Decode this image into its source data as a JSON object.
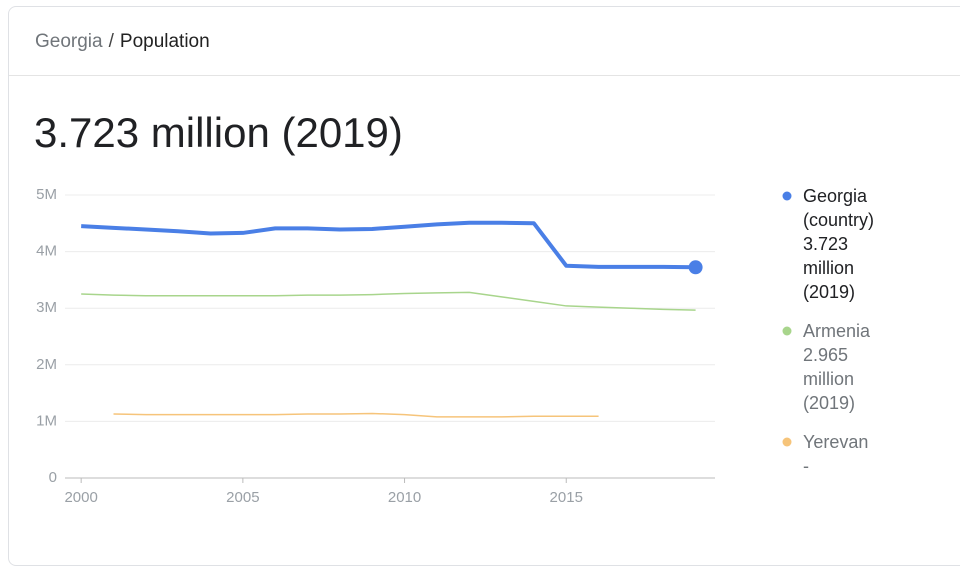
{
  "breadcrumb": {
    "parent": "Georgia",
    "separator": "/",
    "current": "Population"
  },
  "headline": "3.723 million (2019)",
  "chart_data": {
    "type": "line",
    "x": [
      2000,
      2001,
      2002,
      2003,
      2004,
      2005,
      2006,
      2007,
      2008,
      2009,
      2010,
      2011,
      2012,
      2013,
      2014,
      2015,
      2016,
      2017,
      2018,
      2019
    ],
    "xlim": [
      1999.5,
      2019.6
    ],
    "xticks": [
      2000,
      2005,
      2010,
      2015
    ],
    "ylim": [
      0,
      5
    ],
    "yticks": [
      {
        "value": 0,
        "label": "0"
      },
      {
        "value": 1,
        "label": "1M"
      },
      {
        "value": 2,
        "label": "2M"
      },
      {
        "value": 3,
        "label": "3M"
      },
      {
        "value": 4,
        "label": "4M"
      },
      {
        "value": 5,
        "label": "5M"
      }
    ],
    "grid": true,
    "series": [
      {
        "name": "Georgia (country)",
        "legend_value": "3.723 million (2019)",
        "color": "#4a7fe6",
        "values": [
          4.45,
          4.42,
          4.39,
          4.36,
          4.32,
          4.33,
          4.41,
          4.41,
          4.39,
          4.4,
          4.44,
          4.48,
          4.51,
          4.51,
          4.5,
          3.75,
          3.73,
          3.73,
          3.73,
          3.723
        ]
      },
      {
        "name": "Armenia",
        "legend_value": "2.965 million (2019)",
        "color": "#a8d58c",
        "values": [
          3.25,
          3.23,
          3.22,
          3.22,
          3.22,
          3.22,
          3.22,
          3.23,
          3.23,
          3.24,
          3.26,
          3.27,
          3.28,
          3.2,
          3.12,
          3.04,
          3.02,
          3.0,
          2.98,
          2.965
        ]
      },
      {
        "name": "Yerevan",
        "legend_value": "-",
        "color": "#f6c47a",
        "values": [
          null,
          1.13,
          1.12,
          1.12,
          1.12,
          1.12,
          1.12,
          1.13,
          1.13,
          1.14,
          1.12,
          1.08,
          1.08,
          1.08,
          1.09,
          1.09,
          1.09,
          null,
          null,
          null
        ]
      }
    ]
  }
}
